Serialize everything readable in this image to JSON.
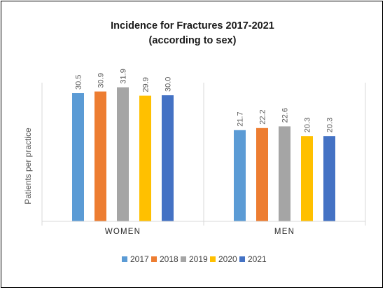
{
  "chart_data": {
    "type": "bar",
    "title": [
      "Incidence for Fractures 2017-2021",
      "(according to sex)"
    ],
    "xlabel": "",
    "ylabel": "Patients per practice",
    "categories": [
      "WOMEN",
      "MEN"
    ],
    "series": [
      {
        "name": "2017",
        "color": "#5B9BD5",
        "values": [
          30.5,
          21.7
        ],
        "labels": [
          "30.5",
          "21.7"
        ]
      },
      {
        "name": "2018",
        "color": "#ED7D31",
        "values": [
          30.9,
          22.2
        ],
        "labels": [
          "30.9",
          "22.2"
        ]
      },
      {
        "name": "2019",
        "color": "#A5A5A5",
        "values": [
          31.9,
          22.6
        ],
        "labels": [
          "31.9",
          "22.6"
        ]
      },
      {
        "name": "2020",
        "color": "#FFC000",
        "values": [
          29.9,
          20.3
        ],
        "labels": [
          "29.9",
          "20.3"
        ]
      },
      {
        "name": "2021",
        "color": "#4472C4",
        "values": [
          30.0,
          20.3
        ],
        "labels": [
          "30.0",
          "20.3"
        ]
      }
    ],
    "ylim": [
      0,
      40
    ],
    "grid": false,
    "legend_position": "bottom",
    "data_labels_rotated": true
  }
}
